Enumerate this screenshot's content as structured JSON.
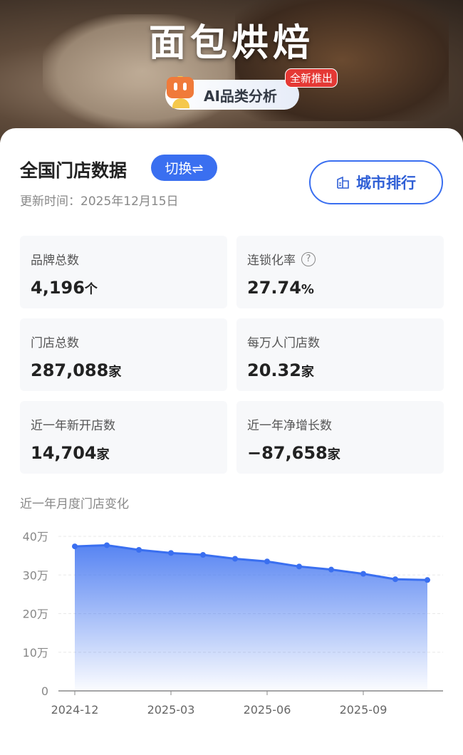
{
  "header": {
    "title": "面包烘焙",
    "ai_label": "AI品类分析",
    "badge": "全新推出"
  },
  "main": {
    "title": "全国门店数据",
    "switch_label": "切换⇌",
    "updated": "更新时间：2025年12月15日",
    "city_rank_label": "城市排行"
  },
  "stats": [
    {
      "label": "品牌总数",
      "value": "4,196",
      "unit": "个"
    },
    {
      "label": "连锁化率",
      "value": "27.74",
      "unit": "%",
      "help": "?"
    },
    {
      "label": "门店总数",
      "value": "287,088",
      "unit": "家"
    },
    {
      "label": "每万人门店数",
      "value": "20.32",
      "unit": "家"
    },
    {
      "label": "近一年新开店数",
      "value": "14,704",
      "unit": "家"
    },
    {
      "label": "近一年净增长数",
      "value": "−87,658",
      "unit": "家"
    }
  ],
  "chart_data": {
    "type": "area",
    "title": "近一年月度门店变化",
    "x": [
      "2024-12",
      "2025-01",
      "2025-02",
      "2025-03",
      "2025-04",
      "2025-05",
      "2025-06",
      "2025-07",
      "2025-08",
      "2025-09",
      "2025-10",
      "2025-11"
    ],
    "values": [
      37.4,
      37.7,
      36.5,
      35.7,
      35.2,
      34.2,
      33.5,
      32.2,
      31.4,
      30.3,
      28.9,
      28.7
    ],
    "unit": "万",
    "ylim": [
      0,
      40
    ],
    "yticks": [
      "0",
      "10万",
      "20万",
      "30万",
      "40万"
    ],
    "xticks": [
      "2024-12",
      "2025-03",
      "2025-06",
      "2025-09"
    ],
    "grid": true,
    "color": "#3a6ff0"
  }
}
